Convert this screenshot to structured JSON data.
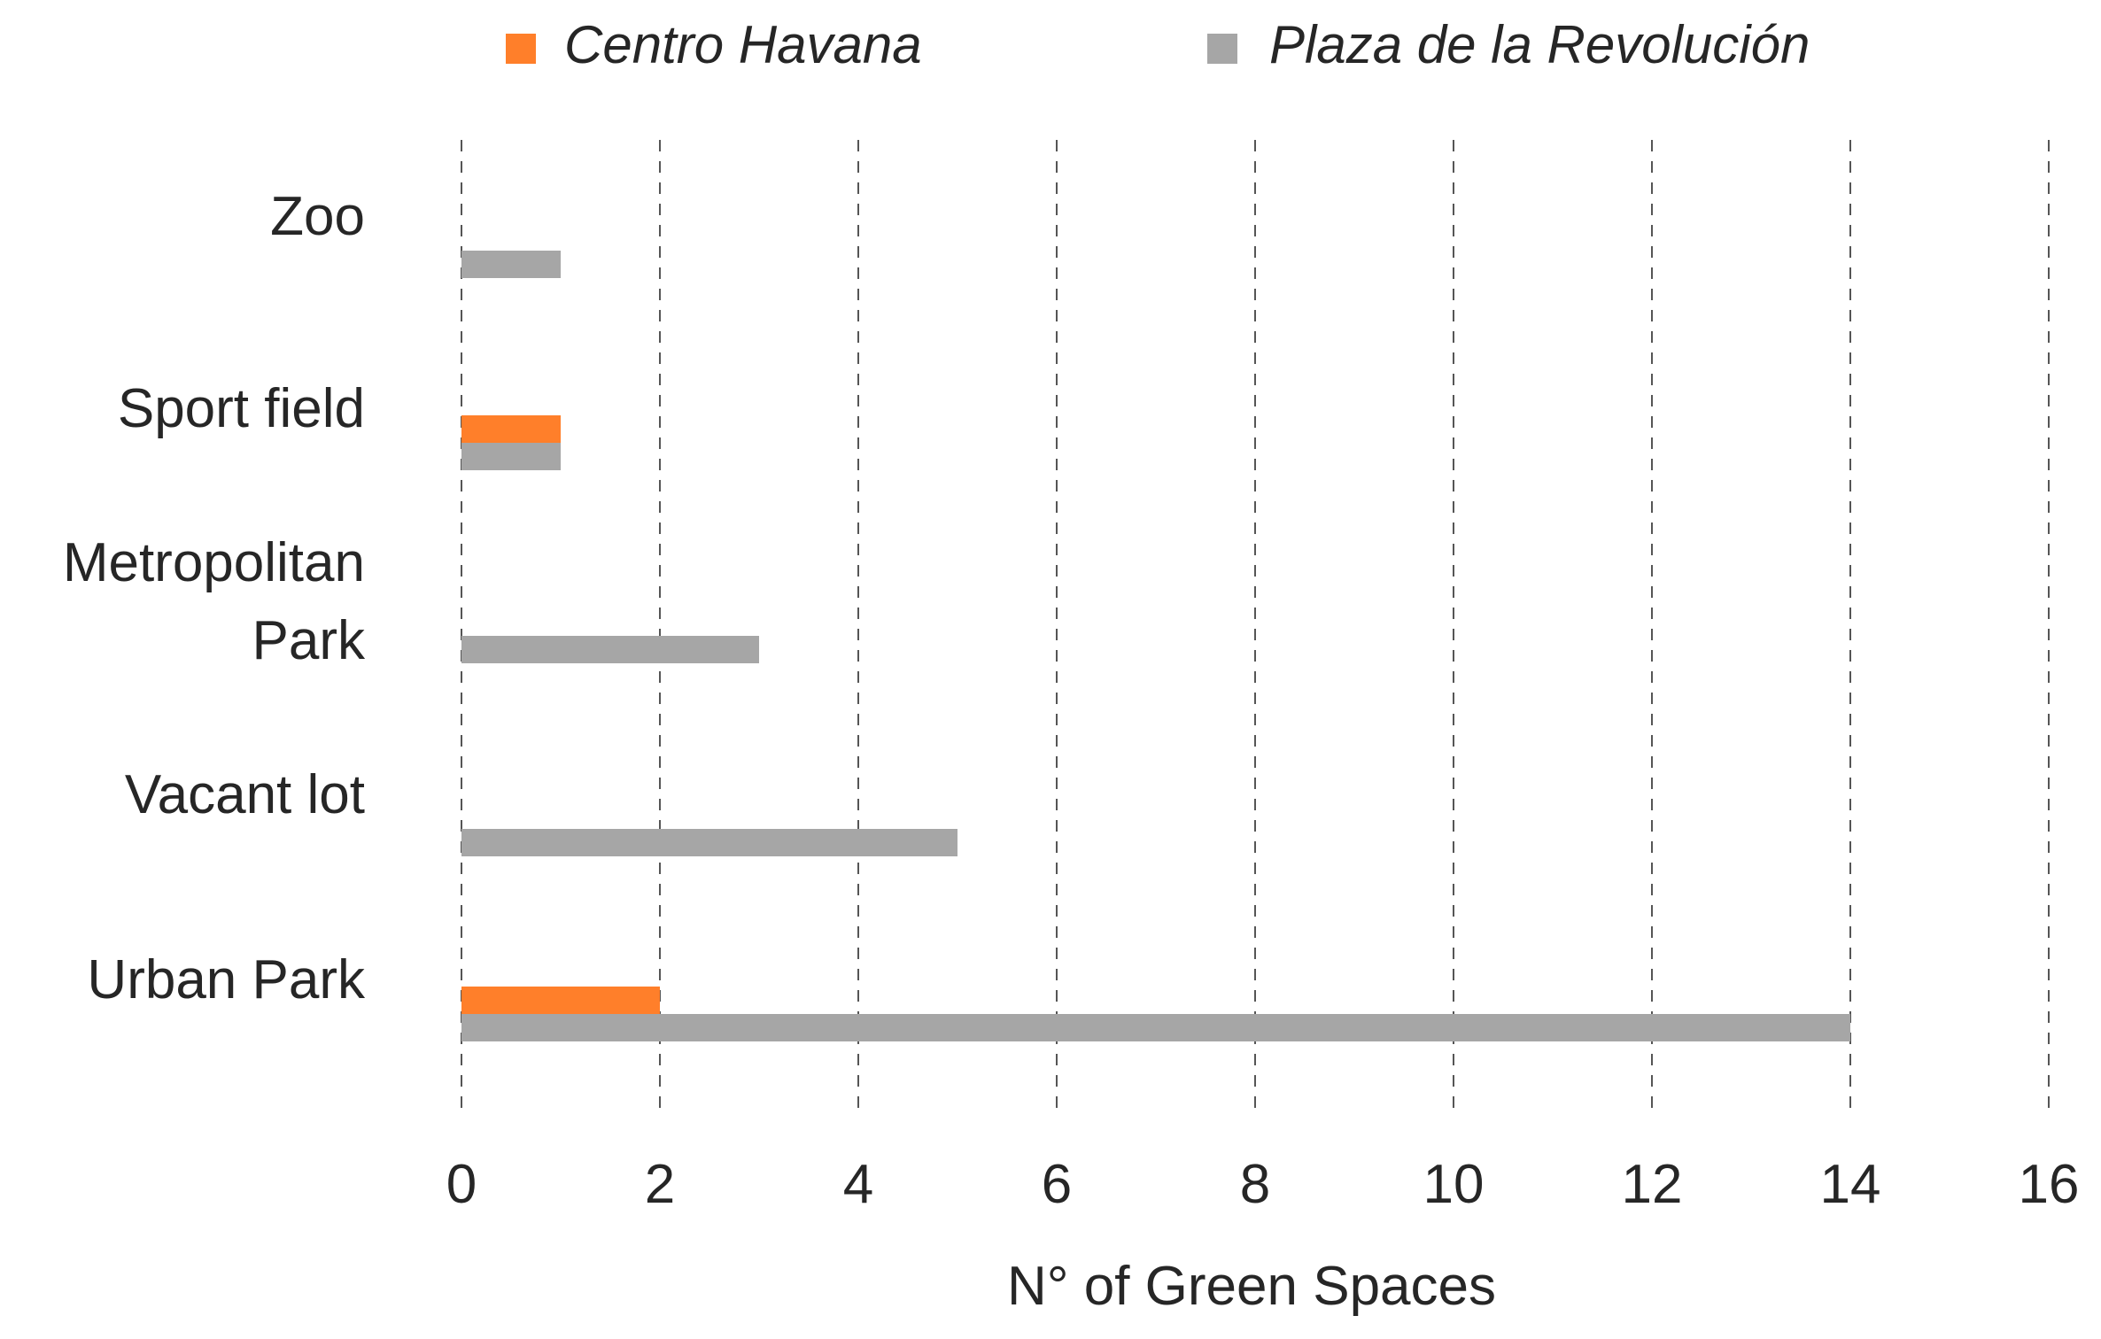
{
  "chart_data": {
    "type": "bar",
    "orientation": "horizontal",
    "categories": [
      "Zoo",
      "Sport field",
      "Metropolitan Park",
      "Vacant lot",
      "Urban Park"
    ],
    "category_lines": [
      [
        "Zoo"
      ],
      [
        "Sport field"
      ],
      [
        "Metropolitan",
        "Park"
      ],
      [
        "Vacant lot"
      ],
      [
        "Urban Park"
      ]
    ],
    "series": [
      {
        "name": "Centro Havana",
        "color": "#FF7F2A",
        "values": [
          0,
          1,
          0,
          0,
          2
        ]
      },
      {
        "name": "Plaza de la Revolución",
        "color": "#A6A6A6",
        "values": [
          1,
          1,
          3,
          5,
          14
        ]
      }
    ],
    "xlabel": "N° of Green Spaces",
    "xlim": [
      0,
      16
    ],
    "xticks": [
      0,
      2,
      4,
      6,
      8,
      10,
      12,
      14,
      16
    ],
    "grid": "vertical dashed",
    "legend": "top"
  }
}
